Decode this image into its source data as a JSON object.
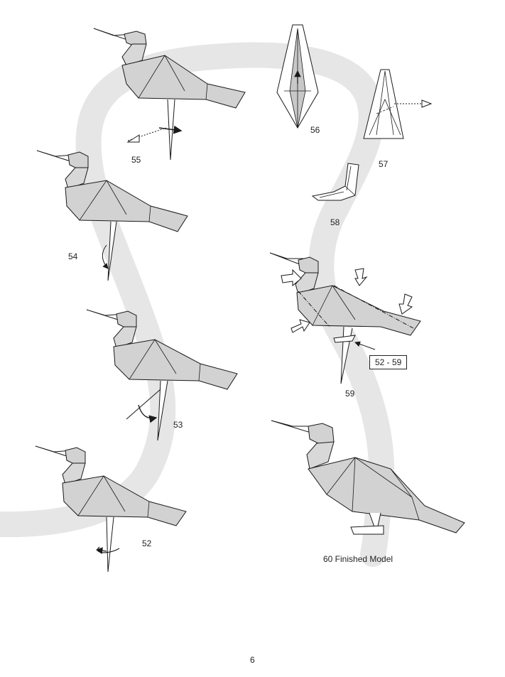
{
  "steps": {
    "s52": "52",
    "s53": "53",
    "s54": "54",
    "s55": "55",
    "s56": "56",
    "s57": "57",
    "s58": "58",
    "s59": "59",
    "s60": "60 Finished Model"
  },
  "reference_box": "52 - 59",
  "page_number": "6",
  "colors": {
    "paper": "#d2d2d2",
    "paper_light": "#e1e1e1",
    "paper_dark": "#b9b9b9",
    "path_band": "#e6e6e6",
    "line": "#1a1a1a"
  }
}
